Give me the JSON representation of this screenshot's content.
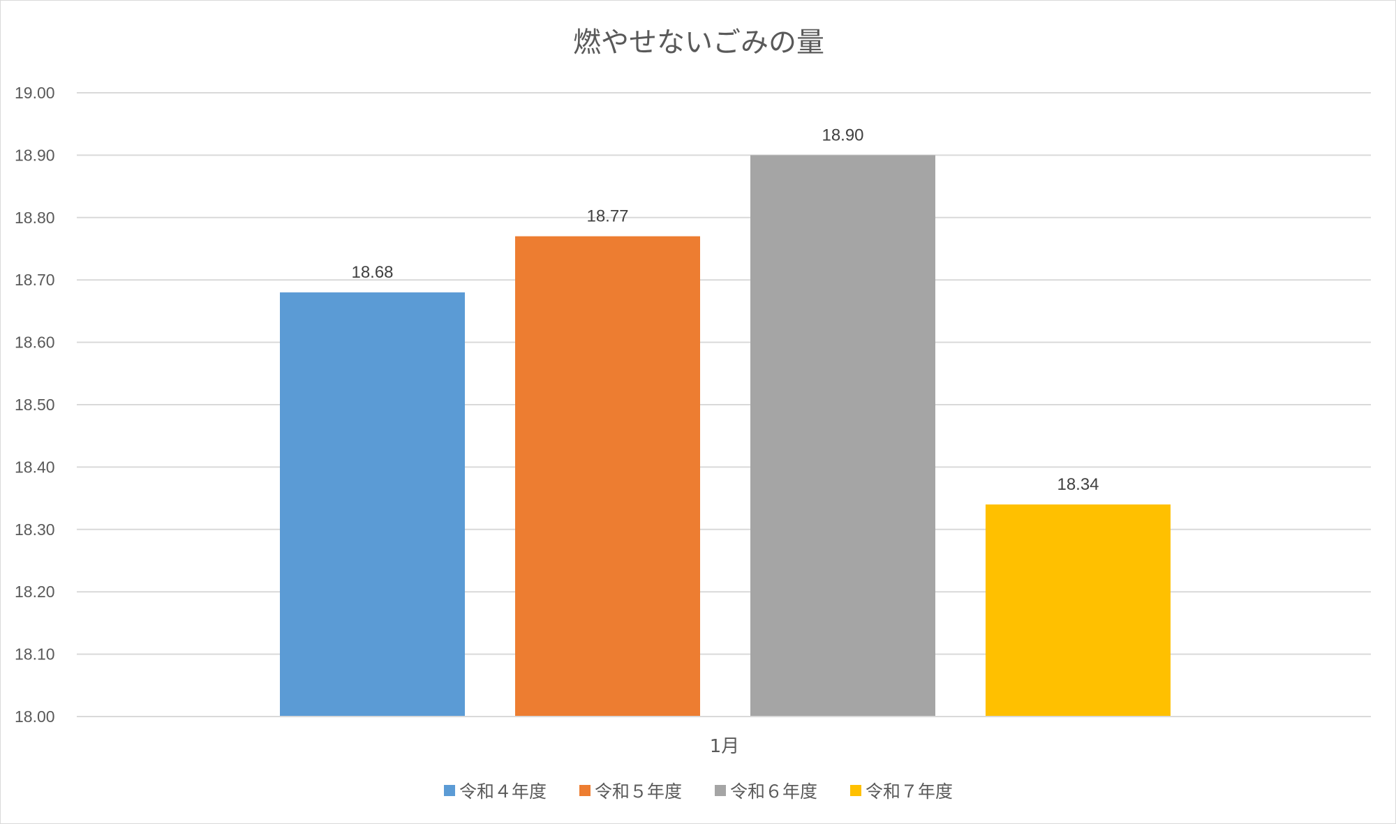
{
  "chart_data": {
    "type": "bar",
    "title": "燃やせないごみの量",
    "categories": [
      "1月"
    ],
    "series": [
      {
        "name": "令和４年度",
        "values": [
          18.68
        ],
        "color": "#5B9BD5"
      },
      {
        "name": "令和５年度",
        "values": [
          18.77
        ],
        "color": "#ED7D31"
      },
      {
        "name": "令和６年度",
        "values": [
          18.9
        ],
        "color": "#A5A5A5"
      },
      {
        "name": "令和７年度",
        "values": [
          18.34
        ],
        "color": "#FFC000"
      }
    ],
    "ylim": [
      18.0,
      19.0
    ],
    "yticks": [
      "18.00",
      "18.10",
      "18.20",
      "18.30",
      "18.40",
      "18.50",
      "18.60",
      "18.70",
      "18.80",
      "18.90",
      "19.00"
    ],
    "data_labels": [
      "18.68",
      "18.77",
      "18.90",
      "18.34"
    ],
    "grid": true,
    "legend_position": "bottom",
    "xlabel": "",
    "ylabel": ""
  }
}
